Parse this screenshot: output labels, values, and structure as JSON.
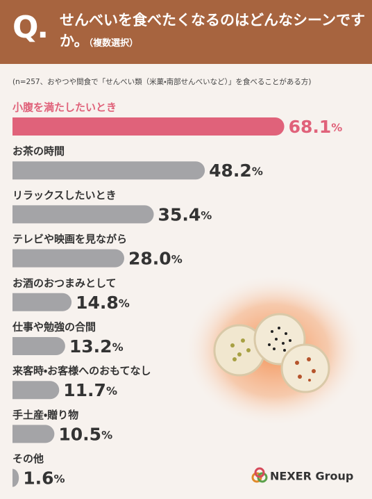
{
  "header": {
    "q": "Q.",
    "title": "せんべいを食べたくなるのはどんなシーンですか。",
    "note": "（複数選択）"
  },
  "chart_data": {
    "type": "bar",
    "orientation": "horizontal",
    "subtitle": "(n=257、おやつや間食で「せんべい類（米菓・南部せんべいなど）」を食べることがある方)",
    "categories": [
      "小腹を満たしたいとき",
      "お茶の時間",
      "リラックスしたいとき",
      "テレビや映画を見ながら",
      "お酒のおつまみとして",
      "仕事や勉強の合間",
      "来客時・お客様へのおもてなし",
      "手土産・贈り物",
      "その他"
    ],
    "values": [
      68.1,
      48.2,
      35.4,
      28.0,
      14.8,
      13.2,
      11.7,
      10.5,
      1.6
    ],
    "value_labels": [
      "68.1%",
      "48.2%",
      "35.4%",
      "28.0%",
      "14.8%",
      "13.2%",
      "11.7%",
      "10.5%",
      "1.6%"
    ],
    "colors": [
      "#e0627a",
      "#a4a4a7",
      "#a4a4a7",
      "#a4a4a7",
      "#a4a4a7",
      "#a4a4a7",
      "#a4a4a7",
      "#a4a4a7",
      "#a4a4a7"
    ]
  },
  "footer": {
    "logo": "NEXER Group"
  }
}
